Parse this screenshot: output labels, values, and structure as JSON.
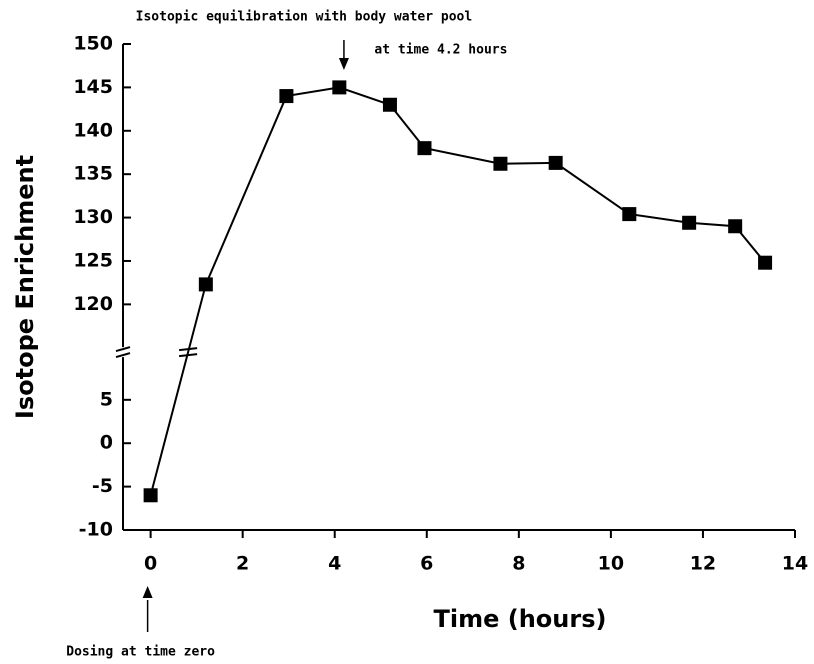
{
  "chart_data": {
    "type": "line",
    "xlabel": "Time (hours)",
    "ylabel": "Isotope Enrichment",
    "x": [
      0,
      1.2,
      2.95,
      4.1,
      5.2,
      5.95,
      7.6,
      8.8,
      10.4,
      11.7,
      12.7,
      13.35
    ],
    "series": [
      {
        "color": "#000000",
        "values": [
          -6,
          122.3,
          144,
          145,
          143,
          138,
          136.2,
          136.3,
          130.4,
          129.4,
          129,
          124.8
        ]
      }
    ],
    "xlim": [
      -0.6,
      14
    ],
    "xticks": [
      0,
      2,
      4,
      6,
      8,
      10,
      12,
      14
    ],
    "ylim": [
      -10,
      150
    ],
    "ybreak": [
      10.5,
      114.5
    ],
    "yticks": [
      -10,
      -5,
      0,
      5,
      120,
      125,
      130,
      135,
      140,
      145,
      150
    ],
    "annotations": [
      {
        "text": [
          "Isotopic equilibration with body water pool",
          "at time 4.2 hours"
        ],
        "x": 4.2,
        "side": "top"
      },
      {
        "text": [
          "Dosing at time zero"
        ],
        "x": 0,
        "side": "bottom"
      }
    ]
  }
}
